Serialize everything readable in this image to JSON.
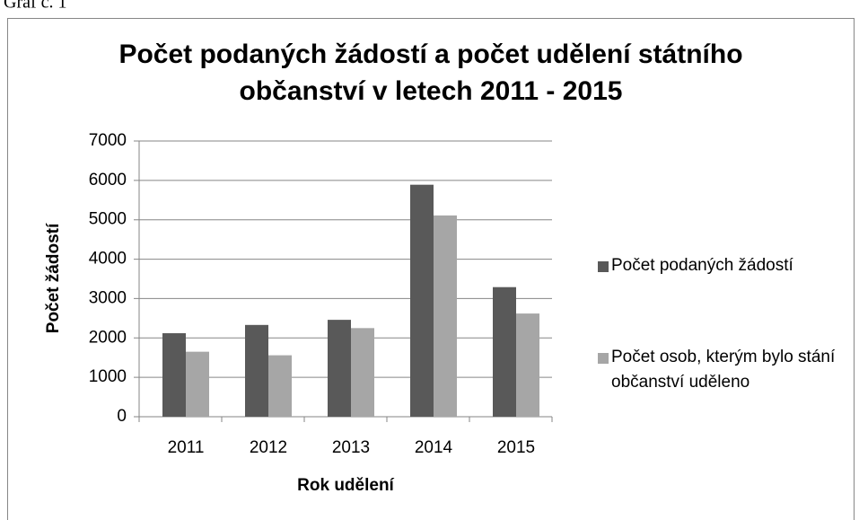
{
  "caption": "Graf č. 1",
  "chart_data": {
    "type": "bar",
    "title": [
      "Počet podaných žádostí a počet udělení státního",
      "občanství v letech 2011 - 2015"
    ],
    "x_label": "Rok udělení",
    "y_label": "Počet žádostí",
    "categories": [
      "2011",
      "2012",
      "2013",
      "2014",
      "2015"
    ],
    "series": [
      {
        "name": "Počet podaných žádostí",
        "color": "#595959",
        "values": [
          2120,
          2330,
          2460,
          5890,
          3290
        ]
      },
      {
        "name": "Počet osob, kterým bylo stání občanství uděleno",
        "color": "#a6a6a6",
        "values": [
          1650,
          1560,
          2250,
          5110,
          2620
        ]
      }
    ],
    "ylim": [
      0,
      7000
    ],
    "yticks": [
      0,
      1000,
      2000,
      3000,
      4000,
      5000,
      6000,
      7000
    ],
    "grid": true,
    "legend": "right"
  }
}
